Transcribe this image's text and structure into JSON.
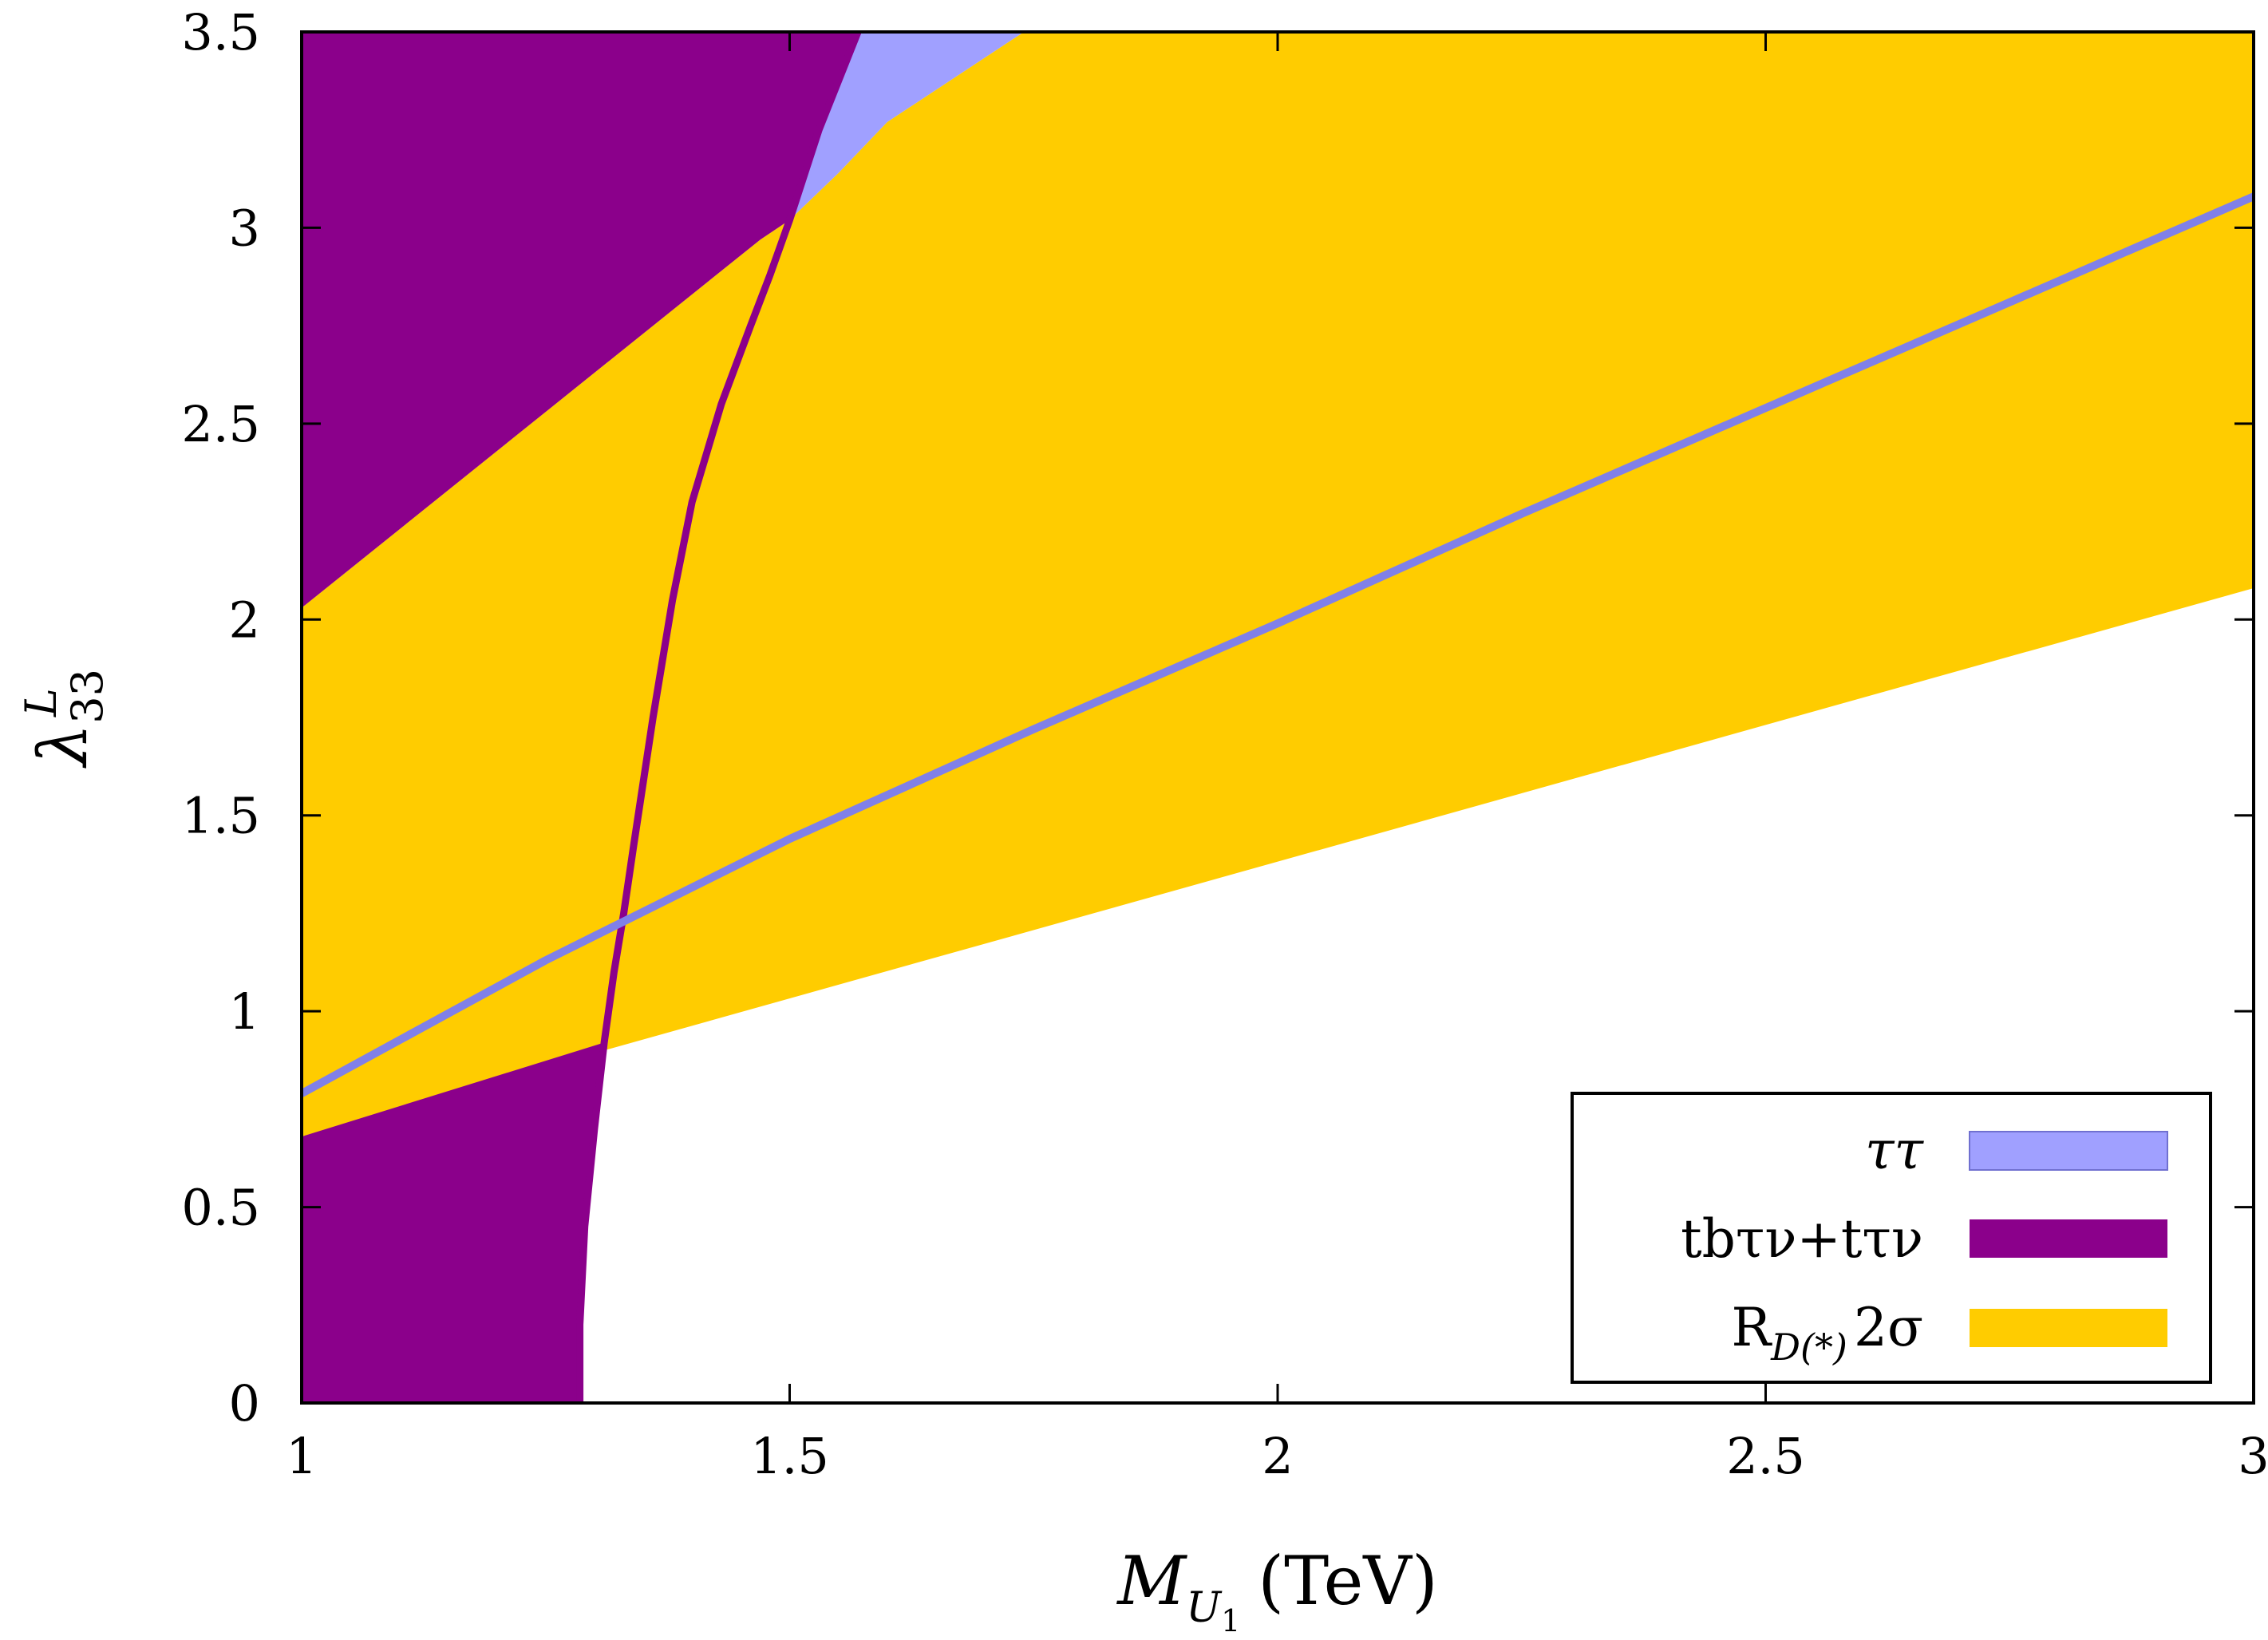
{
  "chart_data": {
    "type": "area",
    "xlim": [
      1,
      3
    ],
    "ylim": [
      0,
      3.5
    ],
    "x_ticks": [
      "1",
      "1.5",
      "2",
      "2.5",
      "3"
    ],
    "y_ticks": [
      "0",
      "0.5",
      "1",
      "1.5",
      "2",
      "2.5",
      "3",
      "3.5"
    ],
    "xlabel": {
      "symbol": "M",
      "sub": "U",
      "subsub": "1",
      "unit": "(TeV)"
    },
    "ylabel": {
      "symbol": "λ",
      "sup": "L",
      "sub": "33"
    },
    "legend_position": "bottom-right",
    "legend": [
      {
        "label": "ττ",
        "color": "#a0a0ff"
      },
      {
        "label": "tbτν+tτν",
        "color": "#8b008b"
      },
      {
        "label_main": "R",
        "label_sub": "D(*)",
        "label_tail": "2σ",
        "color": "#ffcc00"
      }
    ],
    "regions": {
      "rd_band": {
        "name": "R_D(*) 2σ",
        "color": "#ffcc00",
        "upper": {
          "x": [
            1.0,
            1.47,
            1.5,
            1.55,
            1.6,
            1.74
          ],
          "y": [
            2.03,
            2.97,
            3.02,
            3.14,
            3.27,
            3.5
          ]
        },
        "lower": {
          "x": [
            1.0,
            1.31,
            3.0
          ],
          "y": [
            0.68,
            0.9,
            2.08
          ]
        }
      },
      "tt_exclusion": {
        "name": "ττ",
        "color": "#a0a0ff",
        "boundary": {
          "x": [
            1.5,
            1.53,
            1.57
          ],
          "y": [
            3.02,
            3.25,
            3.5
          ]
        }
      },
      "tbtaunu_exclusion": {
        "name": "tbτν+tτν",
        "color": "#8b008b",
        "boundary": {
          "x": [
            1.285,
            1.285,
            1.29,
            1.3,
            1.31,
            1.32,
            1.33,
            1.34,
            1.36,
            1.38,
            1.4,
            1.43,
            1.46,
            1.48,
            1.5,
            1.53,
            1.57
          ],
          "y": [
            0.0,
            0.2,
            0.45,
            0.7,
            0.92,
            1.1,
            1.25,
            1.42,
            1.75,
            2.05,
            2.3,
            2.55,
            2.75,
            2.88,
            3.02,
            3.25,
            3.5
          ]
        }
      }
    },
    "tt_line": {
      "name": "ττ",
      "color": "#8080e8",
      "x": [
        1.0,
        1.25,
        1.5,
        1.75,
        2.0,
        2.25,
        2.5,
        2.75,
        3.0
      ],
      "y": [
        0.79,
        1.13,
        1.44,
        1.72,
        1.99,
        2.27,
        2.54,
        2.81,
        3.08
      ]
    }
  }
}
